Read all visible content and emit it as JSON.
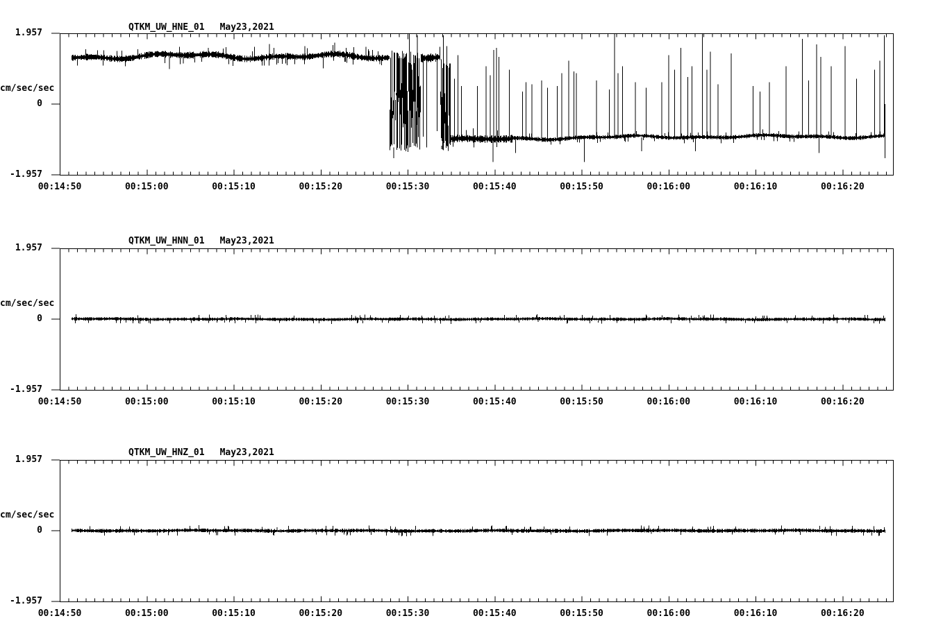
{
  "page": {
    "background": "#ffffff",
    "foreground": "#000000",
    "description": "Three-channel strong-motion seismogram display for station QTKM (UW network), channels HNE, HNN, HNZ"
  },
  "chart_data": [
    {
      "type": "line",
      "title": "QTKM_UW_HNE_01",
      "subtitle_date": "May23,2021",
      "xlabel": "",
      "ylabel": "cm/sec/sec",
      "ylim": [
        -1.957,
        1.957
      ],
      "y_ticks": [
        1.957,
        0,
        -1.957
      ],
      "y_tick_labels": [
        "1.957",
        "0",
        "-1.957"
      ],
      "x_tick_labels": [
        "00:14:50",
        "00:15:00",
        "00:15:10",
        "00:15:20",
        "00:15:30",
        "00:15:40",
        "00:15:50",
        "00:16:00",
        "00:16:10",
        "00:16:20"
      ],
      "x_major_tick_sec": 10,
      "x_minor_tick_sec": 1,
      "duration_sec": 95.8,
      "trace_start_sec": 1.3,
      "trace_end_sec": 94.85,
      "grid": false,
      "legend": false,
      "segments": [
        {
          "t0": 1.3,
          "t1": 37.9,
          "base": 1.29,
          "base_end": 1.33,
          "noise": 0.07,
          "wander": 0.09
        },
        {
          "t0": 37.9,
          "t1": 41.5,
          "chaos": true,
          "top": 1.5,
          "bottom": -1.35
        },
        {
          "t0": 41.5,
          "t1": 43.7,
          "base": 1.32,
          "noise": 0.09,
          "wander": 0.05
        },
        {
          "t0": 43.7,
          "t1": 44.9,
          "chaos": true,
          "top": 1.25,
          "bottom": -1.3
        },
        {
          "t0": 44.9,
          "t1": 52.0,
          "base": -0.97,
          "noise": 0.08,
          "wander": 0.04
        },
        {
          "t0": 52.0,
          "t1": 94.85,
          "base": -0.95,
          "base_end": -0.88,
          "noise": 0.045,
          "wander": 0.05
        }
      ],
      "spikes": [
        [
          9.0,
          1.52
        ],
        [
          12.6,
          0.97
        ],
        [
          14.2,
          1.12
        ],
        [
          17.1,
          1.55
        ],
        [
          19.9,
          1.06
        ],
        [
          22.4,
          1.58
        ],
        [
          24.1,
          1.66
        ],
        [
          26.0,
          1.12
        ],
        [
          28.2,
          1.6
        ],
        [
          30.3,
          0.99
        ],
        [
          31.6,
          1.7
        ],
        [
          33.0,
          1.14
        ],
        [
          35.2,
          1.58
        ],
        [
          36.8,
          1.1
        ],
        [
          38.4,
          -1.5
        ],
        [
          40.2,
          1.95
        ],
        [
          41.1,
          1.9
        ],
        [
          41.8,
          -0.9
        ],
        [
          42.2,
          -1.2
        ],
        [
          43.4,
          -0.75
        ],
        [
          43.9,
          -1.25
        ],
        [
          44.1,
          1.9
        ],
        [
          44.5,
          1.6
        ],
        [
          45.4,
          0.7
        ],
        [
          45.8,
          1.35
        ],
        [
          46.2,
          0.5
        ],
        [
          48.0,
          0.5
        ],
        [
          49.0,
          1.05
        ],
        [
          49.5,
          0.8
        ],
        [
          49.8,
          -1.6
        ],
        [
          49.9,
          1.5
        ],
        [
          50.2,
          1.55
        ],
        [
          50.5,
          1.3
        ],
        [
          51.7,
          0.95
        ],
        [
          52.4,
          -1.35
        ],
        [
          53.2,
          0.35
        ],
        [
          53.6,
          0.6
        ],
        [
          54.3,
          0.55
        ],
        [
          55.4,
          0.65
        ],
        [
          56.1,
          0.45
        ],
        [
          57.2,
          0.5
        ],
        [
          57.7,
          0.85
        ],
        [
          58.5,
          1.2
        ],
        [
          59.1,
          0.9
        ],
        [
          59.4,
          0.85
        ],
        [
          60.3,
          -1.6
        ],
        [
          61.7,
          0.65
        ],
        [
          63.2,
          0.4
        ],
        [
          63.8,
          2.9
        ],
        [
          64.2,
          0.85
        ],
        [
          64.7,
          1.05
        ],
        [
          66.2,
          0.6
        ],
        [
          66.9,
          -1.3
        ],
        [
          67.4,
          0.45
        ],
        [
          69.2,
          0.6
        ],
        [
          70.0,
          1.35
        ],
        [
          70.7,
          0.95
        ],
        [
          71.4,
          1.55
        ],
        [
          72.2,
          0.75
        ],
        [
          72.7,
          1.05
        ],
        [
          73.1,
          -1.3
        ],
        [
          73.9,
          2.9
        ],
        [
          74.4,
          0.95
        ],
        [
          74.8,
          1.45
        ],
        [
          75.7,
          0.55
        ],
        [
          77.2,
          1.4
        ],
        [
          79.7,
          0.5
        ],
        [
          80.5,
          0.35
        ],
        [
          81.6,
          0.6
        ],
        [
          83.5,
          1.05
        ],
        [
          85.4,
          1.8
        ],
        [
          86.1,
          0.65
        ],
        [
          87.0,
          1.65
        ],
        [
          87.3,
          -1.35
        ],
        [
          87.5,
          1.3
        ],
        [
          88.7,
          1.05
        ],
        [
          90.3,
          1.6
        ],
        [
          91.6,
          0.7
        ],
        [
          93.7,
          0.95
        ],
        [
          94.3,
          1.2
        ],
        [
          94.8,
          1.9
        ],
        [
          94.9,
          -1.5
        ]
      ]
    },
    {
      "type": "line",
      "title": "QTKM_UW_HNN_01",
      "subtitle_date": "May23,2021",
      "xlabel": "",
      "ylabel": "cm/sec/sec",
      "ylim": [
        -1.957,
        1.957
      ],
      "y_ticks": [
        1.957,
        0,
        -1.957
      ],
      "y_tick_labels": [
        "1.957",
        "0",
        "-1.957"
      ],
      "x_tick_labels": [
        "00:14:50",
        "00:15:00",
        "00:15:10",
        "00:15:20",
        "00:15:30",
        "00:15:40",
        "00:15:50",
        "00:16:00",
        "00:16:10",
        "00:16:20"
      ],
      "x_major_tick_sec": 10,
      "x_minor_tick_sec": 1,
      "duration_sec": 95.8,
      "trace_start_sec": 1.3,
      "trace_end_sec": 94.85,
      "grid": false,
      "legend": false,
      "segments": [
        {
          "t0": 1.3,
          "t1": 94.85,
          "base": 0,
          "noise": 0.035,
          "wander": 0.012
        }
      ],
      "spikes": [
        [
          34.0,
          0.09
        ],
        [
          55.0,
          -0.08
        ],
        [
          81.0,
          0.1
        ]
      ]
    },
    {
      "type": "line",
      "title": "QTKM_UW_HNZ_01",
      "subtitle_date": "May23,2021",
      "xlabel": "",
      "ylabel": "cm/sec/sec",
      "ylim": [
        -1.957,
        1.957
      ],
      "y_ticks": [
        1.957,
        0,
        -1.957
      ],
      "y_tick_labels": [
        "1.957",
        "0",
        "-1.957"
      ],
      "x_tick_labels": [
        "00:14:50",
        "00:15:00",
        "00:15:10",
        "00:15:20",
        "00:15:30",
        "00:15:40",
        "00:15:50",
        "00:16:00",
        "00:16:10",
        "00:16:20"
      ],
      "x_major_tick_sec": 10,
      "x_minor_tick_sec": 1,
      "duration_sec": 95.8,
      "trace_start_sec": 1.3,
      "trace_end_sec": 94.85,
      "grid": false,
      "legend": false,
      "segments": [
        {
          "t0": 1.3,
          "t1": 94.85,
          "base": 0,
          "noise": 0.04,
          "wander": 0.012
        }
      ],
      "spikes": [
        [
          25.0,
          0.1
        ],
        [
          68.0,
          -0.09
        ],
        [
          88.0,
          0.11
        ]
      ]
    }
  ]
}
